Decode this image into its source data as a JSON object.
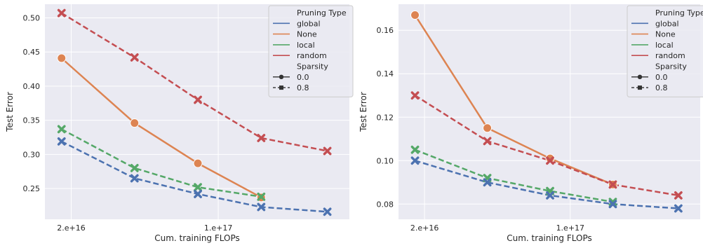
{
  "chart_data": [
    {
      "type": "line",
      "xlabel": "Cum. training FLOPs",
      "ylabel": "Test Error",
      "x_scale": "log",
      "xlim": [
        1.5e+16,
        4.2e+17
      ],
      "ylim": [
        0.205,
        0.52
      ],
      "x_ticks": [
        {
          "value": 2e+16,
          "label": "2.e+16"
        },
        {
          "value": 1e+17,
          "label": "1.e+17"
        }
      ],
      "y_ticks": [
        0.25,
        0.3,
        0.35,
        0.4,
        0.45,
        0.5
      ],
      "y_tick_labels": [
        "0.25",
        "0.30",
        "0.35",
        "0.40",
        "0.45",
        "0.50"
      ],
      "grid": true,
      "legend_placement": "top-right",
      "legend": {
        "title_hue": "Pruning Type",
        "hue_items": [
          "global",
          "None",
          "local",
          "random"
        ],
        "title_style": "Sparsity",
        "style_items": [
          "0.0",
          "0.8"
        ]
      },
      "series": [
        {
          "name": "None",
          "color": "#dd8452",
          "sparsity": "0.0",
          "x": [
            1.8e+16,
            4e+16,
            8e+16,
            1.6e+17
          ],
          "y": [
            0.441,
            0.346,
            0.287,
            0.237
          ]
        },
        {
          "name": "random",
          "color": "#c44e52",
          "sparsity": "0.8",
          "x": [
            1.8e+16,
            4e+16,
            8e+16,
            1.6e+17,
            3.3e+17
          ],
          "y": [
            0.507,
            0.442,
            0.38,
            0.324,
            0.305
          ]
        },
        {
          "name": "local",
          "color": "#55a868",
          "sparsity": "0.8",
          "x": [
            1.8e+16,
            4e+16,
            8e+16,
            1.6e+17
          ],
          "y": [
            0.337,
            0.28,
            0.252,
            0.238
          ]
        },
        {
          "name": "global",
          "color": "#4c72b0",
          "sparsity": "0.8",
          "x": [
            1.8e+16,
            4e+16,
            8e+16,
            1.6e+17,
            3.3e+17
          ],
          "y": [
            0.319,
            0.265,
            0.242,
            0.223,
            0.216
          ]
        }
      ]
    },
    {
      "type": "line",
      "xlabel": "Cum. training FLOPs",
      "ylabel": "Test Error",
      "x_scale": "log",
      "xlim": [
        1.5e+16,
        4.2e+17
      ],
      "ylim": [
        0.073,
        0.172
      ],
      "x_ticks": [
        {
          "value": 2e+16,
          "label": "2.e+16"
        },
        {
          "value": 1e+17,
          "label": "1.e+17"
        }
      ],
      "y_ticks": [
        0.08,
        0.1,
        0.12,
        0.14,
        0.16
      ],
      "y_tick_labels": [
        "0.08",
        "0.10",
        "0.12",
        "0.14",
        "0.16"
      ],
      "grid": true,
      "legend_placement": "top-right",
      "legend": {
        "title_hue": "Pruning Type",
        "hue_items": [
          "global",
          "None",
          "local",
          "random"
        ],
        "title_style": "Sparsity",
        "style_items": [
          "0.0",
          "0.8"
        ]
      },
      "series": [
        {
          "name": "None",
          "color": "#dd8452",
          "sparsity": "0.0",
          "x": [
            1.8e+16,
            4e+16,
            8e+16,
            1.6e+17
          ],
          "y": [
            0.167,
            0.115,
            0.101,
            0.089
          ]
        },
        {
          "name": "random",
          "color": "#c44e52",
          "sparsity": "0.8",
          "x": [
            1.8e+16,
            4e+16,
            8e+16,
            1.6e+17,
            3.3e+17
          ],
          "y": [
            0.13,
            0.109,
            0.1,
            0.089,
            0.084
          ]
        },
        {
          "name": "local",
          "color": "#55a868",
          "sparsity": "0.8",
          "x": [
            1.8e+16,
            4e+16,
            8e+16,
            1.6e+17
          ],
          "y": [
            0.105,
            0.092,
            0.086,
            0.081
          ]
        },
        {
          "name": "global",
          "color": "#4c72b0",
          "sparsity": "0.8",
          "x": [
            1.8e+16,
            4e+16,
            8e+16,
            1.6e+17,
            3.3e+17
          ],
          "y": [
            0.1,
            0.09,
            0.084,
            0.08,
            0.078
          ]
        }
      ]
    }
  ]
}
